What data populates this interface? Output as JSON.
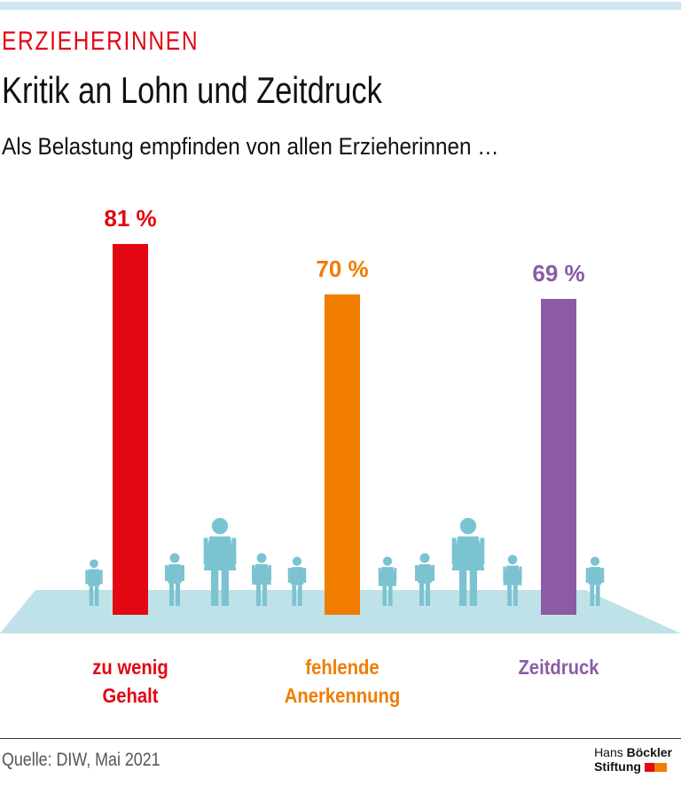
{
  "header": {
    "kicker": "ERZIEHERINNEN",
    "title": "Kritik an Lohn und Zeitdruck",
    "subtitle": "Als Belastung empfinden von allen Erzieherinnen …"
  },
  "chart_data": {
    "type": "bar",
    "categories": [
      "zu wenig Gehalt",
      "fehlende Anerkennung",
      "Zeitdruck"
    ],
    "category_lines": [
      [
        "zu wenig",
        "Gehalt"
      ],
      [
        "fehlende",
        "Anerkennung"
      ],
      [
        "Zeitdruck"
      ]
    ],
    "values": [
      81,
      70,
      69
    ],
    "value_labels": [
      "81 %",
      "70 %",
      "69 %"
    ],
    "colors": [
      "#e30613",
      "#f07d00",
      "#8b5ca5"
    ],
    "unit": "%",
    "ylim": [
      0,
      100
    ],
    "decoration": {
      "floor_color": "#bfe2e9",
      "figure_color": "#7cc3d1"
    }
  },
  "footer": {
    "source": "Quelle: DIW, Mai 2021",
    "logo_line1_a": "Hans",
    "logo_line1_b": "Böckler",
    "logo_line2": "Stiftung"
  }
}
